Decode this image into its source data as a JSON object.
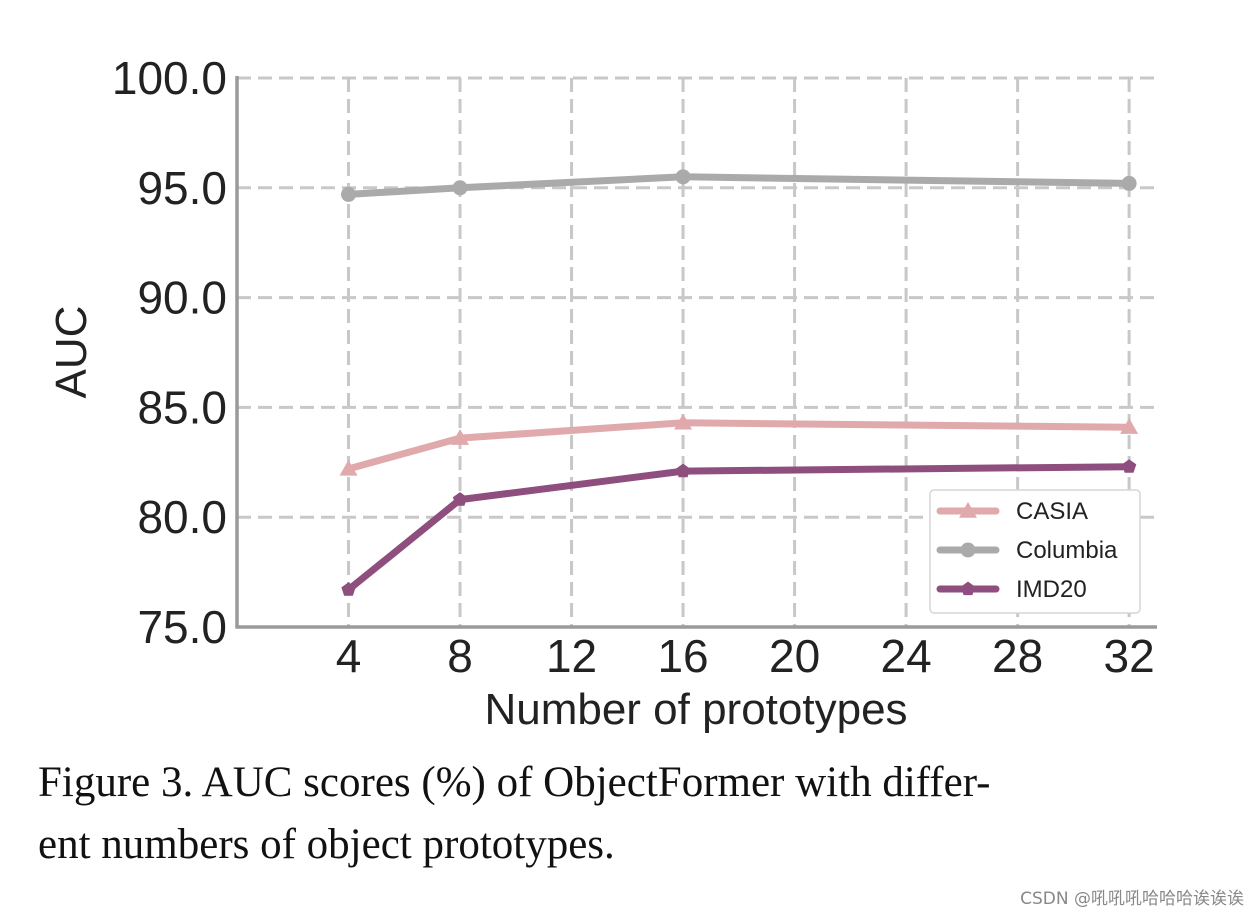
{
  "chart_data": {
    "type": "line",
    "xlabel": "Number of prototypes",
    "ylabel": "AUC",
    "xlim": [
      0,
      33
    ],
    "ylim": [
      75,
      100
    ],
    "xticks": [
      4,
      8,
      12,
      16,
      20,
      24,
      28,
      32
    ],
    "yticks": [
      75,
      80,
      85,
      90,
      95,
      100
    ],
    "ytick_labels": [
      "75.0",
      "80.0",
      "85.0",
      "90.0",
      "95.0",
      "100.0"
    ],
    "grid": true,
    "legend_position": "lower-right",
    "x": [
      4,
      8,
      16,
      32
    ],
    "series": [
      {
        "name": "CASIA",
        "values": [
          82.2,
          83.6,
          84.3,
          84.1
        ],
        "color": "#e0a9ab",
        "marker": "triangle"
      },
      {
        "name": "Columbia",
        "values": [
          94.7,
          95.0,
          95.5,
          95.2
        ],
        "color": "#aaaaaa",
        "marker": "circle"
      },
      {
        "name": "IMD20",
        "values": [
          76.7,
          80.8,
          82.1,
          82.3
        ],
        "color": "#8e4e7e",
        "marker": "pentagon"
      }
    ]
  },
  "caption": {
    "line1": "Figure 3. AUC scores (%) of ObjectFormer with differ-",
    "line2": "ent numbers of object prototypes."
  },
  "watermark": "CSDN @吼吼吼哈哈哈诶诶诶"
}
